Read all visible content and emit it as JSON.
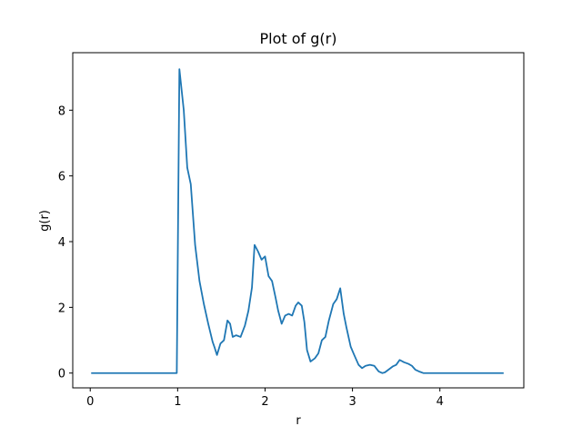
{
  "chart_data": {
    "type": "line",
    "title": "Plot of g(r)",
    "xlabel": "r",
    "ylabel": "g(r)",
    "xlim": [
      -0.2,
      4.96
    ],
    "ylim": [
      -0.45,
      9.75
    ],
    "xticks": [
      0,
      1,
      2,
      3,
      4
    ],
    "yticks": [
      0,
      2,
      4,
      6,
      8
    ],
    "grid": false,
    "line_color": "#1f77b4",
    "series": [
      {
        "x": [
          0.02,
          0.99,
          1.02,
          1.07,
          1.11,
          1.15,
          1.2,
          1.25,
          1.3,
          1.35,
          1.4,
          1.42,
          1.45,
          1.49,
          1.53,
          1.57,
          1.6,
          1.63,
          1.67,
          1.72,
          1.77,
          1.81,
          1.85,
          1.88,
          1.92,
          1.96,
          2.0,
          2.04,
          2.08,
          2.12,
          2.15,
          2.19,
          2.23,
          2.27,
          2.31,
          2.35,
          2.38,
          2.42,
          2.45,
          2.48,
          2.52,
          2.57,
          2.61,
          2.65,
          2.69,
          2.73,
          2.78,
          2.82,
          2.86,
          2.9,
          2.93,
          2.98,
          3.02,
          3.07,
          3.11,
          3.15,
          3.2,
          3.25,
          3.3,
          3.34,
          3.37,
          3.41,
          3.46,
          3.5,
          3.54,
          3.59,
          3.64,
          3.68,
          3.72,
          3.77,
          3.81,
          3.85,
          3.9,
          4.0,
          4.72
        ],
        "y": [
          0.0,
          0.0,
          9.25,
          8.0,
          6.25,
          5.75,
          3.9,
          2.8,
          2.1,
          1.5,
          0.95,
          0.8,
          0.55,
          0.9,
          1.0,
          1.6,
          1.5,
          1.1,
          1.15,
          1.1,
          1.45,
          1.9,
          2.6,
          3.9,
          3.7,
          3.45,
          3.55,
          2.95,
          2.8,
          2.3,
          1.9,
          1.5,
          1.75,
          1.8,
          1.75,
          2.05,
          2.15,
          2.05,
          1.55,
          0.7,
          0.35,
          0.45,
          0.6,
          1.0,
          1.1,
          1.6,
          2.1,
          2.25,
          2.58,
          1.8,
          1.4,
          0.8,
          0.55,
          0.25,
          0.15,
          0.22,
          0.25,
          0.22,
          0.05,
          0.0,
          0.02,
          0.1,
          0.2,
          0.25,
          0.4,
          0.33,
          0.28,
          0.22,
          0.1,
          0.04,
          0.0,
          0.0,
          0.0,
          0.0,
          0.0
        ]
      }
    ]
  }
}
